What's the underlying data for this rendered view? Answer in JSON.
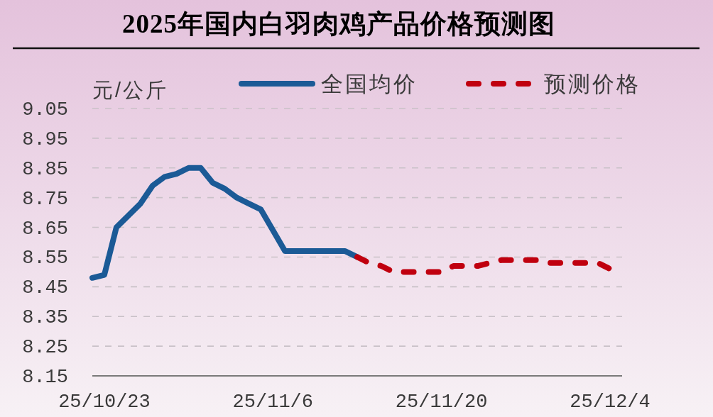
{
  "chart_data": {
    "type": "line",
    "title": "2025年国内白羽肉鸡产品价格预测图",
    "ylabel": "元/公斤",
    "series": [
      {
        "name": "全国均价",
        "color": "#1b5a96",
        "line_style": "solid",
        "x": [
          "2025-10-22",
          "2025-10-23",
          "2025-10-24",
          "2025-10-25",
          "2025-10-26",
          "2025-10-27",
          "2025-10-28",
          "2025-10-29",
          "2025-10-30",
          "2025-10-31",
          "2025-11-01",
          "2025-11-02",
          "2025-11-03",
          "2025-11-04",
          "2025-11-05",
          "2025-11-06",
          "2025-11-07",
          "2025-11-08",
          "2025-11-09",
          "2025-11-10",
          "2025-11-11",
          "2025-11-12",
          "2025-11-13"
        ],
        "values": [
          8.48,
          8.49,
          8.65,
          8.69,
          8.73,
          8.79,
          8.82,
          8.83,
          8.85,
          8.85,
          8.8,
          8.78,
          8.75,
          8.73,
          8.71,
          8.64,
          8.57,
          8.57,
          8.57,
          8.57,
          8.57,
          8.57,
          8.55
        ]
      },
      {
        "name": "预测价格",
        "color": "#c0000f",
        "line_style": "dashed",
        "x": [
          "2025-11-13",
          "2025-11-14",
          "2025-11-15",
          "2025-11-16",
          "2025-11-17",
          "2025-11-18",
          "2025-11-19",
          "2025-11-20",
          "2025-11-21",
          "2025-11-22",
          "2025-11-23",
          "2025-11-24",
          "2025-11-25",
          "2025-11-26",
          "2025-11-27",
          "2025-11-28",
          "2025-11-29",
          "2025-11-30",
          "2025-12-01",
          "2025-12-02",
          "2025-12-03",
          "2025-12-04"
        ],
        "values": [
          8.55,
          8.53,
          8.52,
          8.5,
          8.5,
          8.5,
          8.5,
          8.5,
          8.52,
          8.52,
          8.52,
          8.53,
          8.54,
          8.54,
          8.54,
          8.54,
          8.53,
          8.53,
          8.53,
          8.53,
          8.53,
          8.51
        ]
      }
    ],
    "xlim": [
      "2025-10-22",
      "2025-12-05"
    ],
    "xticks": [
      {
        "value": "2025-10-23",
        "label": "25/10/23"
      },
      {
        "value": "2025-11-06",
        "label": "25/11/6"
      },
      {
        "value": "2025-11-20",
        "label": "25/11/20"
      },
      {
        "value": "2025-12-04",
        "label": "25/12/4"
      }
    ],
    "ylim": [
      8.15,
      9.05
    ],
    "yticks": [
      8.15,
      8.25,
      8.35,
      8.45,
      8.55,
      8.65,
      8.75,
      8.85,
      8.95,
      9.05
    ],
    "grid": "y",
    "legend": "top"
  }
}
